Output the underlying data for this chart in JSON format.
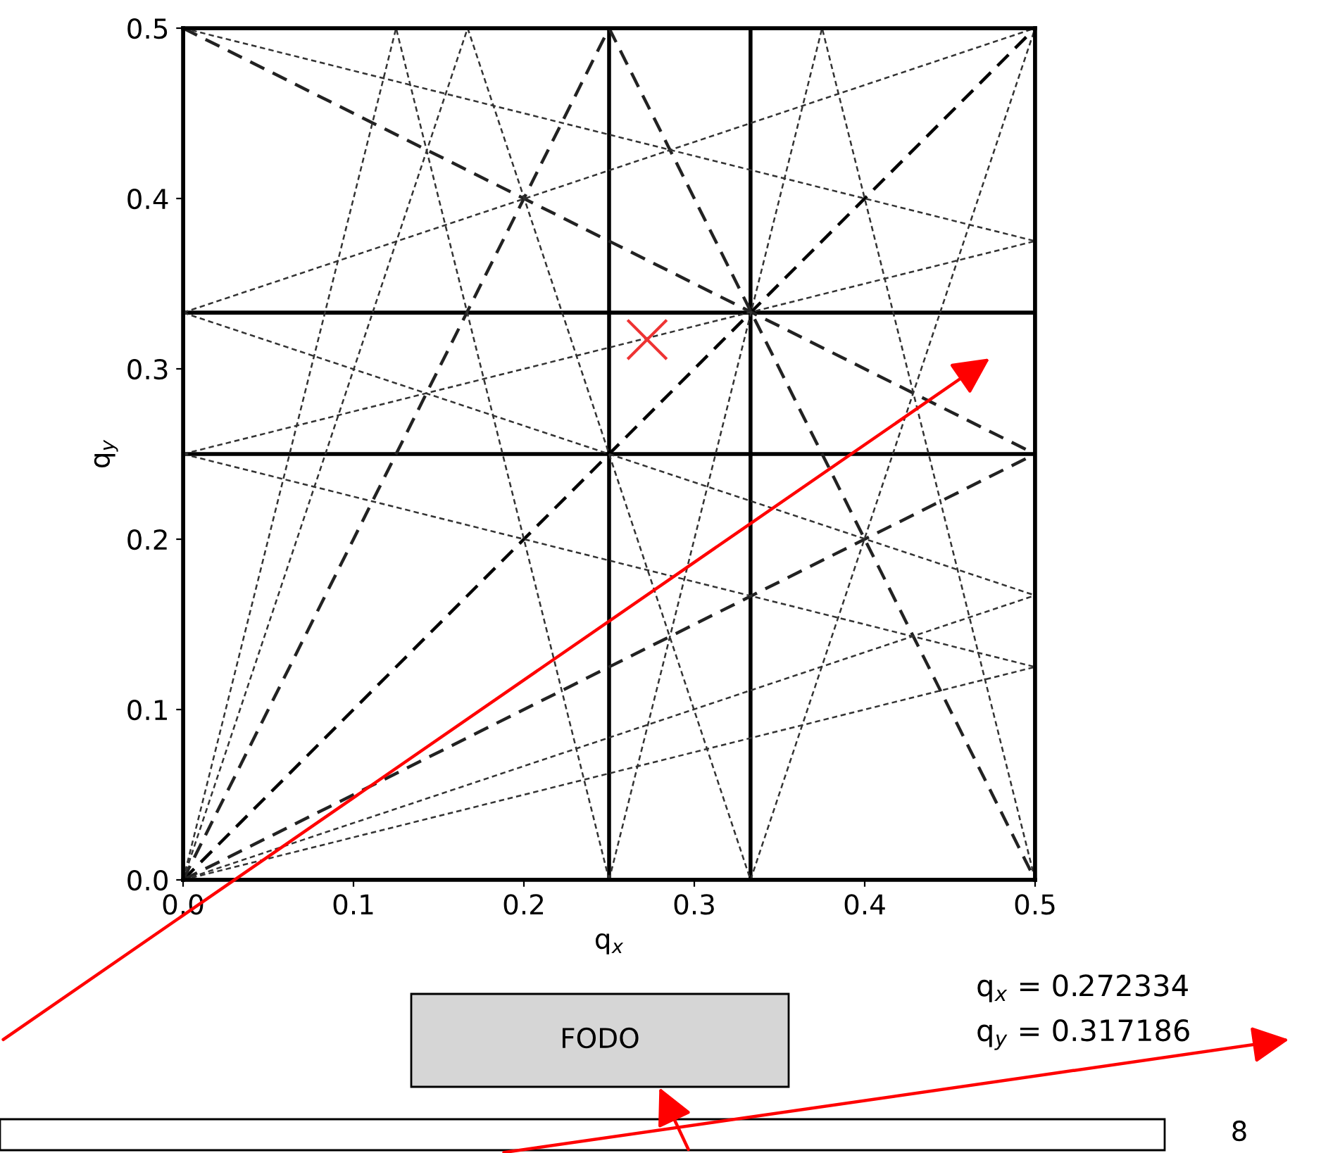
{
  "chart_data": {
    "type": "line",
    "xlabel": "q$_{x}$",
    "ylabel": "q$_{y}$",
    "xlim": [
      0,
      0.5
    ],
    "ylim": [
      0,
      0.5
    ],
    "xticks": [
      {
        "value": 0,
        "label": "0.0"
      },
      0.1,
      0.2,
      0.3,
      0.4,
      0.5
    ],
    "yticks": [
      {
        "value": 0,
        "label": "0.0"
      },
      0.1,
      0.2,
      0.3,
      0.4,
      0.5
    ],
    "grid": false,
    "annotations": [
      "FODO",
      "q$_{x}$ = 0.272334",
      "q$_{y}$ = 0.317186",
      "8"
    ],
    "series": [
      {
        "line_style": "solid",
        "color": "#000000",
        "x": [
          0,
          0
        ],
        "values": [
          0,
          0.5
        ]
      },
      {
        "line_style": "solid",
        "color": "#000000",
        "x": [
          0.5,
          0.5
        ],
        "values": [
          0,
          0.5
        ]
      },
      {
        "line_style": "solid",
        "color": "#000000",
        "x": [
          0,
          0.5
        ],
        "values": [
          0,
          0
        ]
      },
      {
        "line_style": "solid",
        "color": "#000000",
        "x": [
          0,
          0.5
        ],
        "values": [
          0.5,
          0.5
        ]
      },
      {
        "line_style": "solid",
        "color": "#000000",
        "x": [
          0.25,
          0.25
        ],
        "values": [
          0,
          0.5
        ]
      },
      {
        "line_style": "solid",
        "color": "#000000",
        "x": [
          0.333,
          0.333
        ],
        "values": [
          0,
          0.5
        ]
      },
      {
        "line_style": "solid",
        "color": "#000000",
        "x": [
          0,
          0.5
        ],
        "values": [
          0.25,
          0.25
        ]
      },
      {
        "line_style": "solid",
        "color": "#000000",
        "x": [
          0,
          0.5
        ],
        "values": [
          0.333,
          0.333
        ]
      },
      {
        "line_style": "dashed",
        "color": "#000000",
        "x": [
          0,
          0.5
        ],
        "values": [
          0,
          0.5
        ]
      },
      {
        "line_style": "dashed",
        "color": "#222222",
        "x": [
          0,
          0.5
        ],
        "values": [
          0.5,
          0.25
        ]
      },
      {
        "line_style": "dashed",
        "color": "#222222",
        "x": [
          0.25,
          0.5
        ],
        "values": [
          0.5,
          0
        ]
      },
      {
        "line_style": "dashed",
        "color": "#222222",
        "x": [
          0,
          0.5
        ],
        "values": [
          0,
          0.25
        ]
      },
      {
        "line_style": "dashed",
        "color": "#222222",
        "x": [
          0,
          0.25
        ],
        "values": [
          0,
          0.5
        ]
      },
      {
        "line_style": "dotted",
        "color": "#333333",
        "x": [
          0,
          0.5
        ],
        "values": [
          0.333,
          0.167
        ]
      },
      {
        "line_style": "dotted",
        "color": "#333333",
        "x": [
          0.167,
          0.333
        ],
        "values": [
          0.5,
          0
        ]
      },
      {
        "line_style": "dotted",
        "color": "#333333",
        "x": [
          0,
          0.5
        ],
        "values": [
          0,
          0.167
        ]
      },
      {
        "line_style": "dotted",
        "color": "#333333",
        "x": [
          0,
          0.167
        ],
        "values": [
          0,
          0.5
        ]
      },
      {
        "line_style": "dotted",
        "color": "#333333",
        "x": [
          0,
          0.5
        ],
        "values": [
          0.333,
          0.5
        ]
      },
      {
        "line_style": "dotted",
        "color": "#333333",
        "x": [
          0.333,
          0.5
        ],
        "values": [
          0,
          0.5
        ]
      },
      {
        "line_style": "dotted",
        "color": "#333333",
        "x": [
          0,
          0.5
        ],
        "values": [
          0.25,
          0.125
        ]
      },
      {
        "line_style": "dotted",
        "color": "#333333",
        "x": [
          0.25,
          0.125
        ],
        "values": [
          0,
          0.5
        ]
      },
      {
        "line_style": "dotted",
        "color": "#333333",
        "x": [
          0,
          0.5
        ],
        "values": [
          0.25,
          0.375
        ]
      },
      {
        "line_style": "dotted",
        "color": "#333333",
        "x": [
          0.25,
          0.375
        ],
        "values": [
          0,
          0.5
        ]
      },
      {
        "line_style": "dotted",
        "color": "#333333",
        "x": [
          0,
          0.5
        ],
        "values": [
          0.5,
          0.375
        ]
      },
      {
        "line_style": "dotted",
        "color": "#333333",
        "x": [
          0.5,
          0.375
        ],
        "values": [
          0,
          0.5
        ]
      },
      {
        "line_style": "dotted",
        "color": "#333333",
        "x": [
          0,
          0.5
        ],
        "values": [
          0,
          0.125
        ]
      },
      {
        "line_style": "dotted",
        "color": "#333333",
        "x": [
          0,
          0.125
        ],
        "values": [
          0,
          0.5
        ]
      },
      {
        "type": "scatter",
        "marker": "cross",
        "color": "#ee3333",
        "x": [
          0.272334
        ],
        "values": [
          0.317186
        ]
      }
    ]
  }
}
